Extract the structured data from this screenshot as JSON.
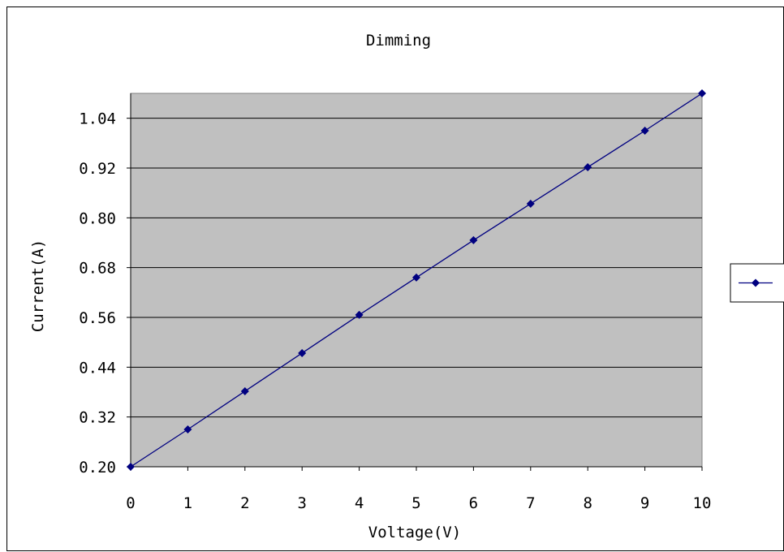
{
  "chart_data": {
    "type": "line",
    "title": "Dimming",
    "xlabel": "Voltage(V)",
    "ylabel": "Current(A)",
    "xlim": [
      0,
      10
    ],
    "ylim": [
      0.2,
      1.1
    ],
    "xticks": [
      "0",
      "1",
      "2",
      "3",
      "4",
      "5",
      "6",
      "7",
      "8",
      "9",
      "10"
    ],
    "yticks": [
      "0.20",
      "0.32",
      "0.44",
      "0.56",
      "0.68",
      "0.80",
      "0.92",
      "1.04"
    ],
    "grid": true,
    "legend": "right",
    "series": [
      {
        "color": "#000080",
        "marker": "diamond",
        "x": [
          0,
          1,
          2,
          3,
          4,
          5,
          6,
          7,
          8,
          9,
          10
        ],
        "y": [
          0.2,
          0.29,
          0.382,
          0.474,
          0.566,
          0.656,
          0.746,
          0.834,
          0.922,
          1.01,
          1.1
        ]
      }
    ],
    "plot_background": "#c0c0c0"
  }
}
